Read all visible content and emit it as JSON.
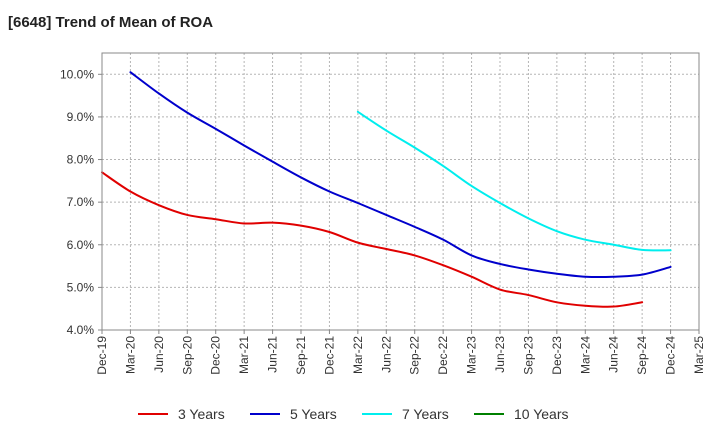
{
  "chart_data": {
    "type": "line",
    "title": "[6648]  Trend of Mean of ROA",
    "xlabel": "",
    "ylabel": "",
    "ylim": [
      4.0,
      10.5
    ],
    "y_ticks": [
      4.0,
      5.0,
      6.0,
      7.0,
      8.0,
      9.0,
      10.0
    ],
    "y_tick_labels": [
      "4.0%",
      "5.0%",
      "6.0%",
      "7.0%",
      "8.0%",
      "9.0%",
      "10.0%"
    ],
    "x_ticks": [
      "Dec-19",
      "Mar-20",
      "Jun-20",
      "Sep-20",
      "Dec-20",
      "Mar-21",
      "Jun-21",
      "Sep-21",
      "Dec-21",
      "Mar-22",
      "Jun-22",
      "Sep-22",
      "Dec-22",
      "Mar-23",
      "Jun-23",
      "Sep-23",
      "Dec-23",
      "Mar-24",
      "Jun-24",
      "Sep-24",
      "Dec-24",
      "Mar-25"
    ],
    "grid": true,
    "legend_position": "bottom",
    "series": [
      {
        "name": "3 Years",
        "color": "#e00000",
        "start_index": 0,
        "values": [
          7.7,
          7.25,
          6.93,
          6.7,
          6.6,
          6.5,
          6.52,
          6.45,
          6.3,
          6.05,
          5.9,
          5.75,
          5.52,
          5.25,
          4.95,
          4.82,
          4.65,
          4.57,
          4.55,
          4.65
        ]
      },
      {
        "name": "5 Years",
        "color": "#0000cc",
        "start_index": 1,
        "values": [
          10.05,
          9.55,
          9.1,
          8.72,
          8.33,
          7.95,
          7.58,
          7.25,
          6.98,
          6.7,
          6.42,
          6.12,
          5.75,
          5.55,
          5.42,
          5.32,
          5.25,
          5.25,
          5.3,
          5.48
        ]
      },
      {
        "name": "7 Years",
        "color": "#00eeee",
        "start_index": 9,
        "values": [
          9.12,
          8.68,
          8.28,
          7.85,
          7.38,
          6.98,
          6.62,
          6.32,
          6.12,
          6.0,
          5.88,
          5.87
        ]
      },
      {
        "name": "10 Years",
        "color": "#008000",
        "start_index": 0,
        "values": []
      }
    ]
  }
}
